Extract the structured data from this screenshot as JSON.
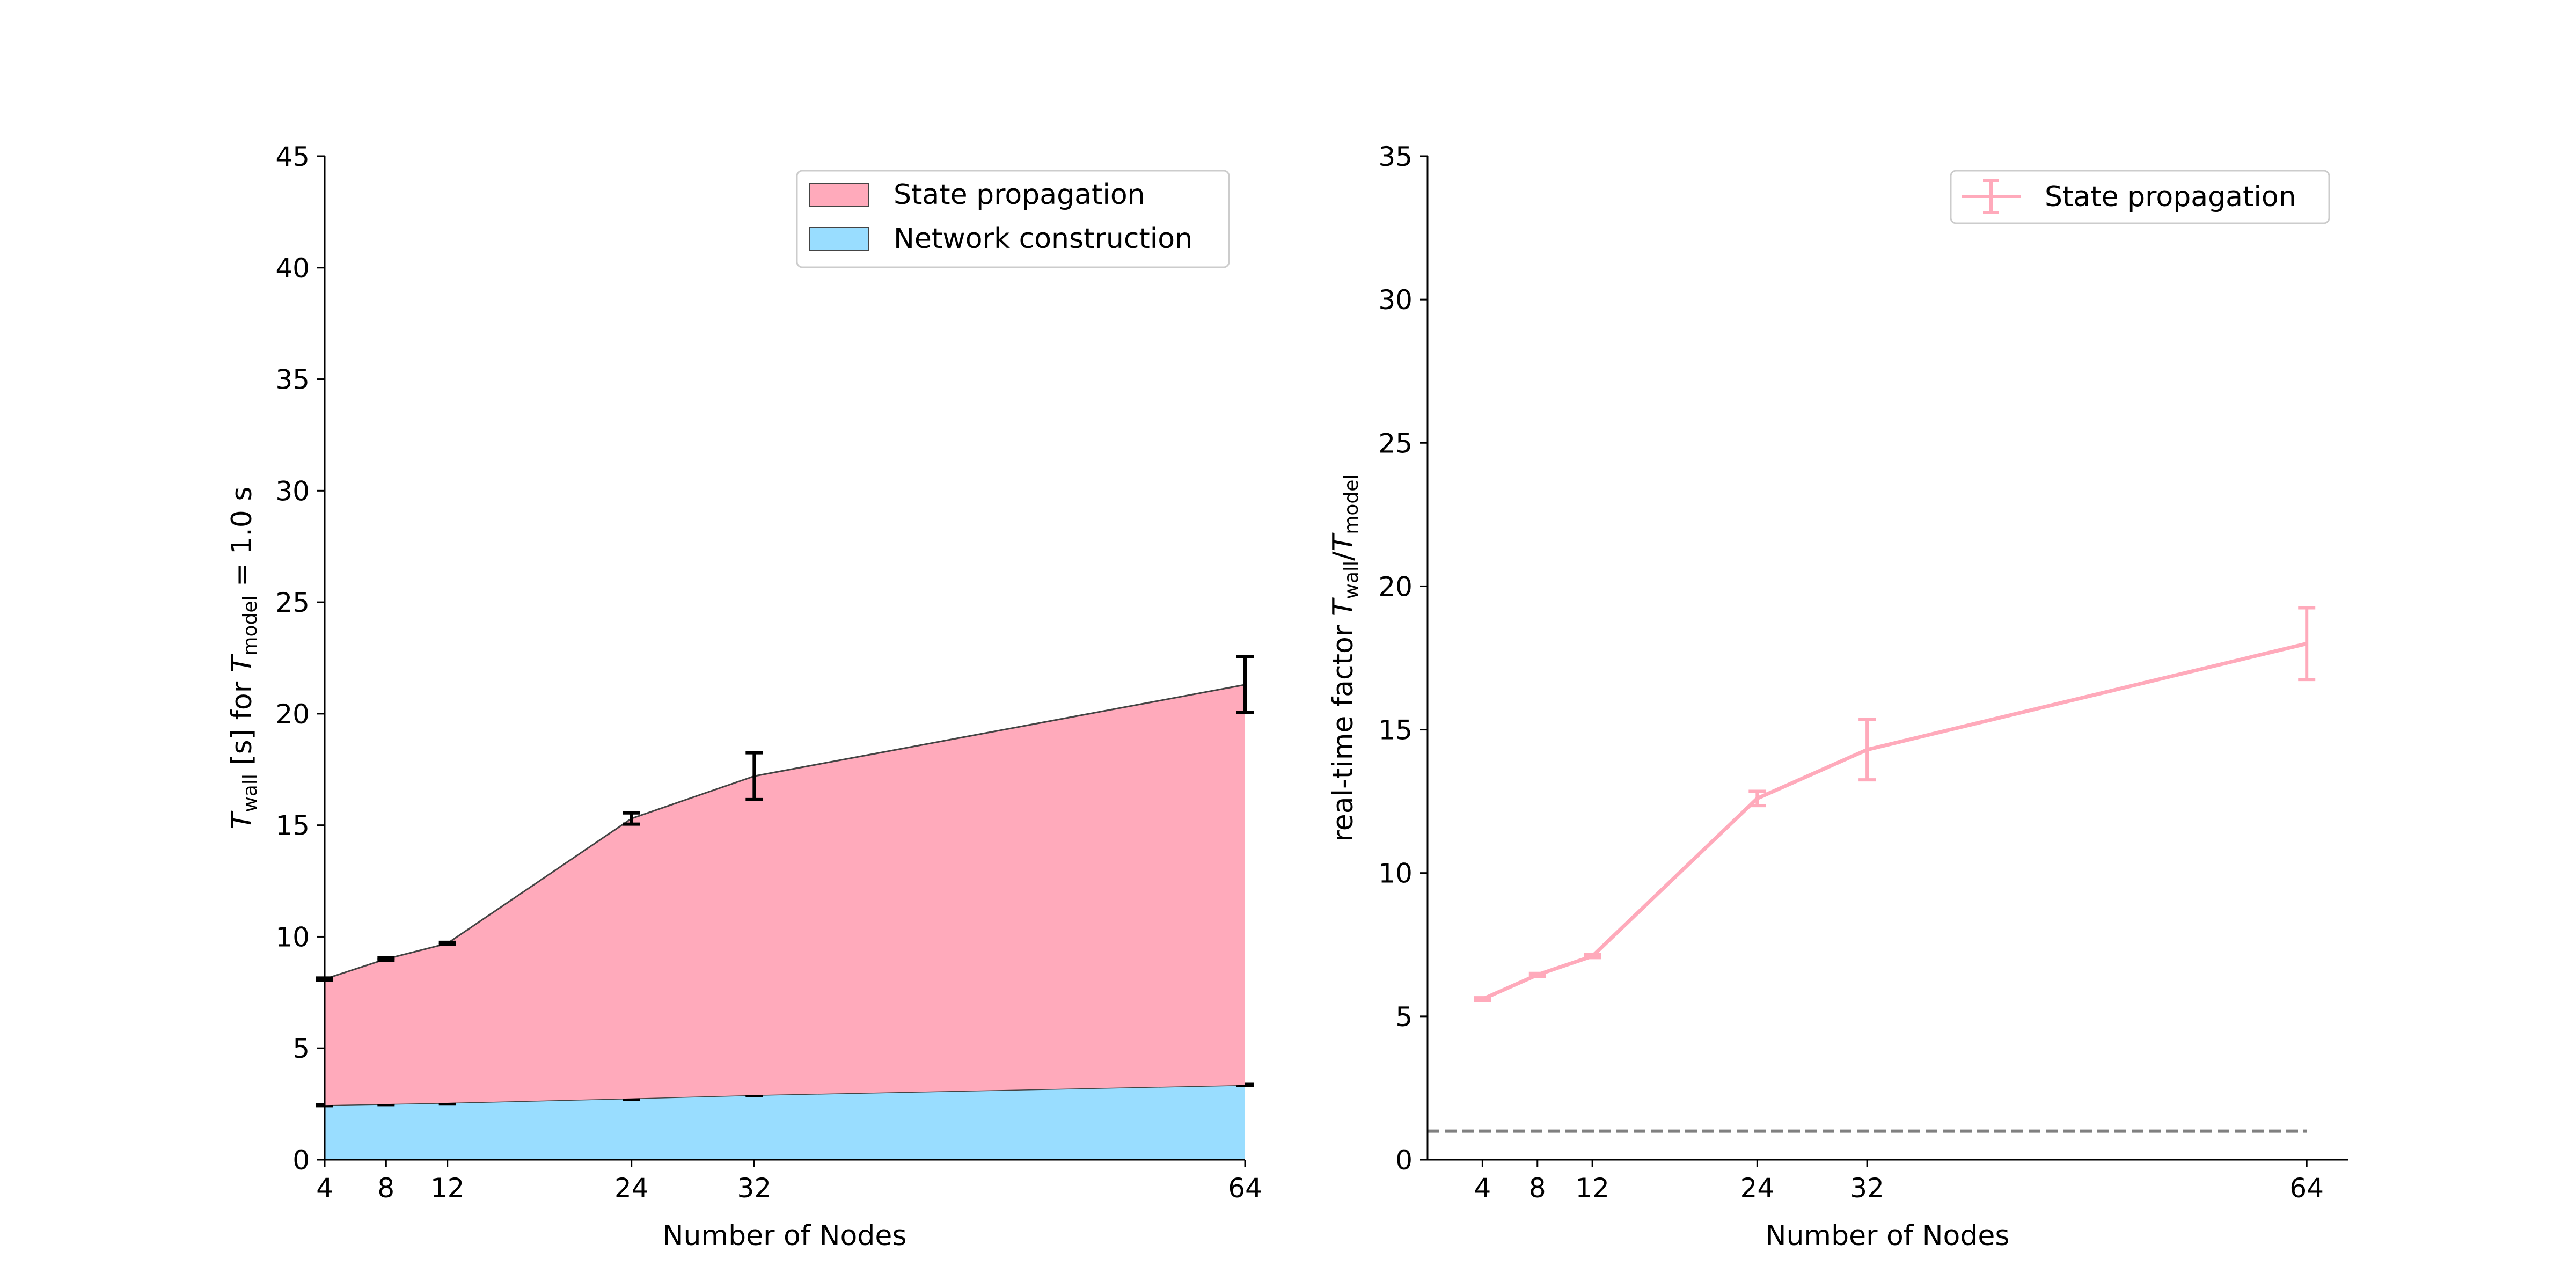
{
  "chart_data": [
    {
      "type": "area",
      "stacked": true,
      "x": [
        4,
        8,
        12,
        24,
        32,
        64
      ],
      "xlabel": "Number of Nodes",
      "ylabel": "T_wall [s] for T_model = 1.0 s",
      "ylabel_parts": {
        "t": "T",
        "sub1": "wall",
        "mid": " [s] for ",
        "t2": "T",
        "sub2": "model",
        "end": " = 1.0 s"
      },
      "xlim": [
        4,
        64
      ],
      "ylim": [
        0,
        45
      ],
      "xticks": [
        4,
        8,
        12,
        24,
        32,
        64
      ],
      "yticks": [
        0,
        5,
        10,
        15,
        20,
        25,
        30,
        35,
        40,
        45
      ],
      "grid": false,
      "legend_position": "top-right",
      "series": [
        {
          "name": "Network construction",
          "color": "#99ddff",
          "values": [
            2.45,
            2.5,
            2.55,
            2.75,
            2.9,
            3.35
          ],
          "errors": [
            0.03,
            0.03,
            0.03,
            0.03,
            0.03,
            0.03
          ]
        },
        {
          "name": "State propagation",
          "color": "#ffaabb",
          "values": [
            5.65,
            6.5,
            7.15,
            12.55,
            14.3,
            17.95
          ],
          "errors": [
            0.05,
            0.05,
            0.05,
            0.25,
            1.05,
            1.25
          ]
        }
      ]
    },
    {
      "type": "line",
      "x": [
        4,
        8,
        12,
        24,
        32,
        64
      ],
      "xlabel": "Number of Nodes",
      "ylabel_parts": {
        "pre": "real-time factor ",
        "t": "T",
        "sub1": "wall",
        "slash": "/",
        "t2": "T",
        "sub2": "model"
      },
      "xlim": [
        0,
        67
      ],
      "ylim": [
        0,
        35
      ],
      "xticks": [
        4,
        8,
        12,
        24,
        32,
        64
      ],
      "yticks": [
        0,
        5,
        10,
        15,
        20,
        25,
        30,
        35
      ],
      "grid": false,
      "legend_position": "top-right",
      "reference_line": {
        "y": 1,
        "style": "dashed",
        "color": "#808080"
      },
      "series": [
        {
          "name": "State propagation",
          "color": "#ffaabb",
          "values": [
            5.6,
            6.45,
            7.1,
            12.6,
            14.3,
            18.0
          ],
          "errors": [
            0.05,
            0.05,
            0.05,
            0.25,
            1.05,
            1.25
          ]
        }
      ]
    }
  ]
}
